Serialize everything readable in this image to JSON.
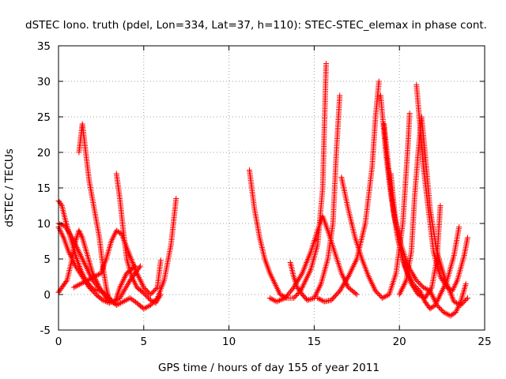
{
  "chart_data": {
    "type": "scatter",
    "title": "dSTEC Iono. truth (pdel, Lon=334, Lat=37, h=110): STEC-STEC_elemax in phase cont.",
    "xlabel": "GPS time / hours of day 155 of year 2011",
    "ylabel": "dSTEC  / TECUs",
    "xlim": [
      0,
      25
    ],
    "ylim": [
      -5,
      35
    ],
    "xticks": [
      0,
      5,
      10,
      15,
      20,
      25
    ],
    "yticks": [
      -5,
      0,
      5,
      10,
      15,
      20,
      25,
      30,
      35
    ],
    "grid": true,
    "marker": "+",
    "color": "#ff0000",
    "series": [
      {
        "points": [
          [
            0.0,
            13.2
          ],
          [
            0.2,
            12.5
          ],
          [
            0.4,
            10.5
          ],
          [
            0.7,
            8.0
          ],
          [
            1.0,
            5.5
          ],
          [
            1.3,
            3.5
          ],
          [
            1.6,
            2.0
          ],
          [
            2.0,
            0.8
          ],
          [
            2.4,
            0.5
          ]
        ]
      },
      {
        "points": [
          [
            0.0,
            9.5
          ],
          [
            0.3,
            8.0
          ],
          [
            0.6,
            6.0
          ],
          [
            1.0,
            4.0
          ],
          [
            1.4,
            2.5
          ],
          [
            1.8,
            1.0
          ],
          [
            2.2,
            0.0
          ],
          [
            2.6,
            -0.8
          ],
          [
            3.0,
            -1.2
          ]
        ]
      },
      {
        "points": [
          [
            0.0,
            10.0
          ],
          [
            0.4,
            9.6
          ],
          [
            0.8,
            8.0
          ],
          [
            1.2,
            6.0
          ],
          [
            1.6,
            4.0
          ],
          [
            2.0,
            2.0
          ],
          [
            2.5,
            0.5
          ],
          [
            3.0,
            -0.5
          ],
          [
            3.4,
            -1.5
          ],
          [
            3.8,
            -1.0
          ],
          [
            4.2,
            -0.5
          ],
          [
            4.6,
            -1.2
          ],
          [
            5.0,
            -2.0
          ],
          [
            5.4,
            -1.5
          ],
          [
            5.8,
            -0.5
          ],
          [
            6.2,
            2.0
          ],
          [
            6.6,
            7.0
          ],
          [
            6.9,
            13.5
          ]
        ]
      },
      {
        "points": [
          [
            0.0,
            0.3
          ],
          [
            0.2,
            1.0
          ],
          [
            0.5,
            2.0
          ],
          [
            0.8,
            5.0
          ],
          [
            1.0,
            7.5
          ],
          [
            1.2,
            9.0
          ],
          [
            1.4,
            8.0
          ],
          [
            1.7,
            5.5
          ],
          [
            2.0,
            3.0
          ],
          [
            2.4,
            1.0
          ],
          [
            2.8,
            -0.5
          ],
          [
            3.2,
            -1.0
          ],
          [
            3.6,
            -0.5
          ],
          [
            4.2,
            2.0
          ],
          [
            4.8,
            4.0
          ]
        ]
      },
      {
        "points": [
          [
            1.2,
            20.0
          ],
          [
            1.4,
            24.0
          ],
          [
            1.6,
            20.0
          ],
          [
            1.8,
            16.0
          ],
          [
            2.1,
            12.0
          ],
          [
            2.4,
            8.0
          ],
          [
            2.6,
            4.0
          ],
          [
            2.8,
            1.0
          ],
          [
            3.0,
            -1.0
          ],
          [
            3.3,
            -1.2
          ],
          [
            3.6,
            1.0
          ],
          [
            4.0,
            3.0
          ],
          [
            4.5,
            4.0
          ]
        ]
      },
      {
        "points": [
          [
            0.9,
            1.0
          ],
          [
            1.3,
            1.5
          ],
          [
            1.7,
            2.0
          ],
          [
            2.1,
            2.5
          ],
          [
            2.5,
            3.0
          ],
          [
            2.8,
            5.0
          ],
          [
            3.1,
            7.5
          ],
          [
            3.4,
            9.0
          ],
          [
            3.7,
            8.5
          ],
          [
            4.1,
            6.0
          ],
          [
            4.6,
            3.0
          ],
          [
            5.0,
            1.0
          ],
          [
            5.4,
            0.0
          ],
          [
            5.8,
            1.0
          ],
          [
            6.0,
            4.8
          ]
        ]
      },
      {
        "points": [
          [
            3.4,
            17.0
          ],
          [
            3.6,
            13.5
          ],
          [
            3.8,
            9.0
          ],
          [
            4.0,
            5.0
          ],
          [
            4.3,
            2.5
          ],
          [
            4.6,
            1.0
          ],
          [
            5.0,
            0.2
          ],
          [
            5.4,
            -0.8
          ],
          [
            5.7,
            -1.2
          ],
          [
            6.0,
            0.0
          ]
        ]
      },
      {
        "points": [
          [
            11.2,
            17.5
          ],
          [
            11.5,
            12.0
          ],
          [
            11.8,
            8.0
          ],
          [
            12.1,
            5.0
          ],
          [
            12.4,
            3.0
          ],
          [
            12.7,
            1.5
          ],
          [
            13.0,
            0.0
          ],
          [
            13.4,
            -0.5
          ],
          [
            13.8,
            -0.5
          ],
          [
            14.2,
            0.5
          ],
          [
            14.5,
            2.0
          ],
          [
            14.8,
            3.5
          ],
          [
            15.2,
            7.0
          ],
          [
            15.5,
            15.0
          ],
          [
            15.7,
            32.5
          ]
        ]
      },
      {
        "points": [
          [
            13.6,
            4.5
          ],
          [
            13.8,
            2.5
          ],
          [
            14.0,
            1.0
          ],
          [
            14.3,
            0.0
          ],
          [
            14.6,
            -0.8
          ],
          [
            15.0,
            -0.5
          ],
          [
            15.4,
            1.5
          ],
          [
            15.8,
            5.0
          ],
          [
            16.1,
            10.0
          ],
          [
            16.3,
            20.0
          ],
          [
            16.5,
            28.0
          ]
        ]
      },
      {
        "points": [
          [
            12.4,
            -0.5
          ],
          [
            12.8,
            -1.0
          ],
          [
            13.3,
            -0.5
          ],
          [
            13.8,
            1.0
          ],
          [
            14.3,
            3.0
          ],
          [
            14.8,
            6.0
          ],
          [
            15.2,
            9.0
          ],
          [
            15.5,
            11.0
          ],
          [
            15.8,
            9.0
          ],
          [
            16.2,
            6.0
          ],
          [
            16.6,
            3.0
          ],
          [
            17.0,
            1.0
          ],
          [
            17.5,
            0.0
          ]
        ]
      },
      {
        "points": [
          [
            16.6,
            16.5
          ],
          [
            17.0,
            12.0
          ],
          [
            17.4,
            8.0
          ],
          [
            17.8,
            5.0
          ],
          [
            18.2,
            2.5
          ],
          [
            18.6,
            0.5
          ],
          [
            19.0,
            -0.5
          ],
          [
            19.4,
            0.0
          ],
          [
            19.8,
            3.0
          ],
          [
            20.2,
            10.0
          ],
          [
            20.5,
            21.0
          ],
          [
            20.6,
            25.5
          ]
        ]
      },
      {
        "points": [
          [
            15.2,
            -0.5
          ],
          [
            15.6,
            -1.0
          ],
          [
            16.0,
            -0.8
          ],
          [
            16.5,
            0.5
          ],
          [
            17.0,
            2.5
          ],
          [
            17.5,
            5.0
          ],
          [
            18.0,
            10.0
          ],
          [
            18.4,
            18.0
          ],
          [
            18.6,
            25.0
          ],
          [
            18.8,
            30.0
          ]
        ]
      },
      {
        "points": [
          [
            18.9,
            28.0
          ],
          [
            19.2,
            20.0
          ],
          [
            19.5,
            14.0
          ],
          [
            19.9,
            8.0
          ],
          [
            20.3,
            4.0
          ],
          [
            20.7,
            1.5
          ],
          [
            21.1,
            0.0
          ],
          [
            21.5,
            -0.5
          ],
          [
            21.9,
            1.0
          ],
          [
            22.2,
            5.0
          ],
          [
            22.4,
            12.5
          ]
        ]
      },
      {
        "points": [
          [
            19.1,
            24.0
          ],
          [
            19.4,
            17.0
          ],
          [
            19.7,
            11.0
          ],
          [
            20.1,
            7.0
          ],
          [
            20.5,
            4.0
          ],
          [
            21.0,
            2.0
          ],
          [
            21.4,
            1.0
          ],
          [
            21.8,
            0.5
          ],
          [
            22.2,
            -1.5
          ],
          [
            22.6,
            -2.5
          ],
          [
            23.0,
            -3.0
          ],
          [
            23.3,
            -2.5
          ],
          [
            23.6,
            -1.0
          ],
          [
            23.9,
            1.5
          ]
        ]
      },
      {
        "points": [
          [
            21.0,
            29.5
          ],
          [
            21.2,
            24.0
          ],
          [
            21.4,
            18.0
          ],
          [
            21.7,
            12.0
          ],
          [
            22.0,
            6.0
          ],
          [
            22.4,
            2.5
          ],
          [
            22.8,
            1.0
          ],
          [
            23.1,
            0.5
          ],
          [
            23.4,
            2.0
          ],
          [
            23.8,
            5.5
          ],
          [
            24.0,
            8.0
          ]
        ]
      },
      {
        "points": [
          [
            20.0,
            0.0
          ],
          [
            20.4,
            2.0
          ],
          [
            20.7,
            6.0
          ],
          [
            20.9,
            14.0
          ],
          [
            21.1,
            20.0
          ],
          [
            21.3,
            25.0
          ],
          [
            21.5,
            20.0
          ],
          [
            21.8,
            12.0
          ],
          [
            22.2,
            6.0
          ],
          [
            22.7,
            2.0
          ],
          [
            23.2,
            -1.0
          ],
          [
            23.6,
            -1.5
          ],
          [
            24.0,
            -0.5
          ]
        ]
      },
      {
        "points": [
          [
            19.5,
            17.0
          ],
          [
            19.7,
            12.0
          ],
          [
            19.9,
            8.0
          ],
          [
            20.2,
            5.0
          ],
          [
            20.5,
            3.0
          ],
          [
            20.8,
            1.5
          ],
          [
            21.2,
            0.5
          ],
          [
            21.5,
            -1.0
          ],
          [
            21.8,
            -2.0
          ],
          [
            22.1,
            -1.5
          ],
          [
            22.4,
            0.0
          ],
          [
            22.8,
            2.0
          ],
          [
            23.2,
            5.5
          ],
          [
            23.5,
            9.5
          ]
        ]
      }
    ]
  }
}
